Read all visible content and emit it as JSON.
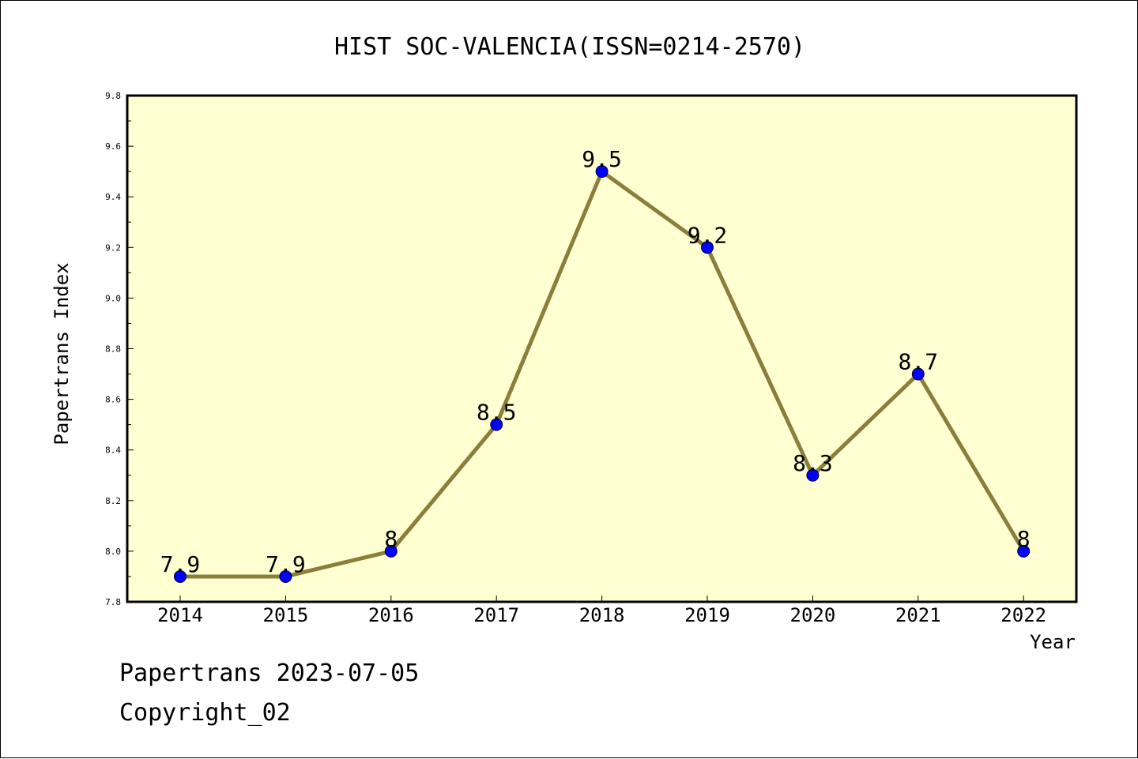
{
  "chart_data": {
    "type": "line",
    "title": "HIST SOC-VALENCIA(ISSN=0214-2570)",
    "xlabel": "Year",
    "ylabel": "Papertrans Index",
    "categories": [
      "2014",
      "2015",
      "2016",
      "2017",
      "2018",
      "2019",
      "2020",
      "2021",
      "2022"
    ],
    "series": [
      {
        "values": [
          7.9,
          7.9,
          8.0,
          8.5,
          9.5,
          9.2,
          8.3,
          8.7,
          8.0
        ],
        "labels": [
          "7.9",
          "7.9",
          "8",
          "8.5",
          "9.5",
          "9.2",
          "8.3",
          "8.7",
          "8"
        ]
      }
    ],
    "ylim": [
      7.8,
      9.8
    ],
    "yticks": [
      "7.8",
      "8.0",
      "8.2",
      "8.4",
      "8.6",
      "8.8",
      "9.0",
      "9.2",
      "9.4",
      "9.6",
      "9.8"
    ],
    "grid": false,
    "legend": "none",
    "colors": {
      "plot_background": "#ffffd2",
      "line": "#8b7d3a",
      "marker": "#0000ff"
    }
  },
  "footer": {
    "line1": "Papertrans 2023-07-05",
    "line2": "Copyright_02"
  }
}
